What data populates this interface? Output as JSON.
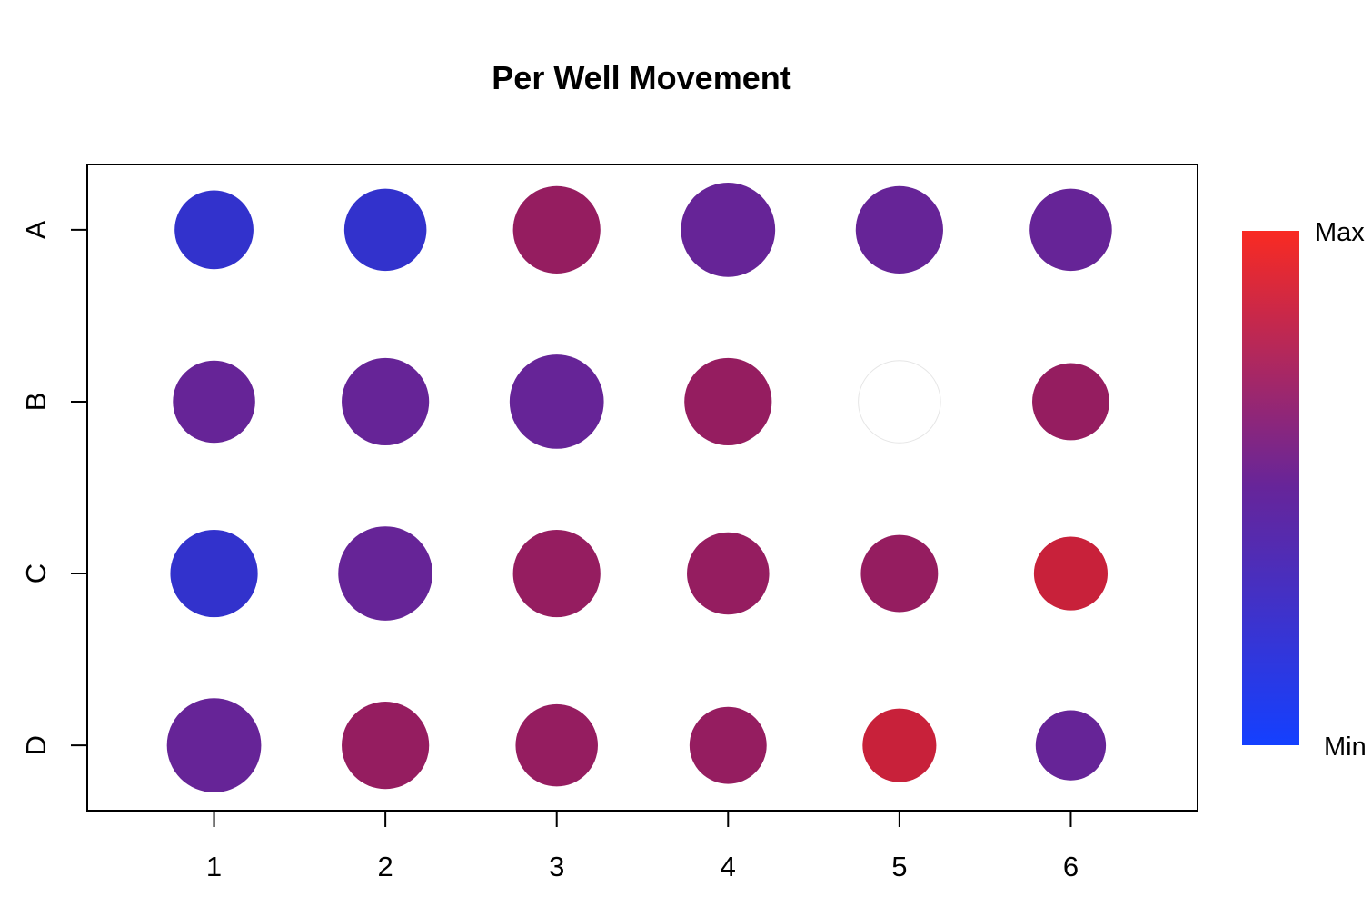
{
  "chart_data": {
    "type": "scatter",
    "title": "Per Well Movement",
    "xlabel": "",
    "ylabel": "",
    "columns": [
      "1",
      "2",
      "3",
      "4",
      "5",
      "6"
    ],
    "rows": [
      "A",
      "B",
      "C",
      "D"
    ],
    "xlim": [
      0.26,
      6.74
    ],
    "ylim": [
      0.62,
      4.38
    ],
    "grid": false,
    "legend": {
      "type": "color-gradient",
      "position": "right",
      "low_label": "Min",
      "high_label": "Max",
      "low_color": "#1440ff",
      "mid_color": "#66259a",
      "high_color": "#f92a22"
    },
    "wells": [
      {
        "row": "A",
        "col": 1,
        "radius_units": 0.23,
        "color": "#3232cc"
      },
      {
        "row": "A",
        "col": 2,
        "radius_units": 0.24,
        "color": "#3232cc"
      },
      {
        "row": "A",
        "col": 3,
        "radius_units": 0.255,
        "color": "#951d60"
      },
      {
        "row": "A",
        "col": 4,
        "radius_units": 0.275,
        "color": "#662497"
      },
      {
        "row": "A",
        "col": 5,
        "radius_units": 0.255,
        "color": "#662497"
      },
      {
        "row": "A",
        "col": 6,
        "radius_units": 0.24,
        "color": "#662497"
      },
      {
        "row": "B",
        "col": 1,
        "radius_units": 0.24,
        "color": "#662497"
      },
      {
        "row": "B",
        "col": 2,
        "radius_units": 0.255,
        "color": "#662497"
      },
      {
        "row": "B",
        "col": 3,
        "radius_units": 0.275,
        "color": "#662497"
      },
      {
        "row": "B",
        "col": 4,
        "radius_units": 0.255,
        "color": "#951d60"
      },
      {
        "row": "B",
        "col": 5,
        "radius_units": 0.24,
        "color": "#ffffff"
      },
      {
        "row": "B",
        "col": 6,
        "radius_units": 0.225,
        "color": "#951d60"
      },
      {
        "row": "C",
        "col": 1,
        "radius_units": 0.255,
        "color": "#3232cc"
      },
      {
        "row": "C",
        "col": 2,
        "radius_units": 0.275,
        "color": "#662497"
      },
      {
        "row": "C",
        "col": 3,
        "radius_units": 0.255,
        "color": "#951d60"
      },
      {
        "row": "C",
        "col": 4,
        "radius_units": 0.24,
        "color": "#951d60"
      },
      {
        "row": "C",
        "col": 5,
        "radius_units": 0.225,
        "color": "#951d60"
      },
      {
        "row": "C",
        "col": 6,
        "radius_units": 0.215,
        "color": "#c8213a"
      },
      {
        "row": "D",
        "col": 1,
        "radius_units": 0.275,
        "color": "#662497"
      },
      {
        "row": "D",
        "col": 2,
        "radius_units": 0.255,
        "color": "#951d60"
      },
      {
        "row": "D",
        "col": 3,
        "radius_units": 0.24,
        "color": "#951d60"
      },
      {
        "row": "D",
        "col": 4,
        "radius_units": 0.225,
        "color": "#951d60"
      },
      {
        "row": "D",
        "col": 5,
        "radius_units": 0.215,
        "color": "#c8213a"
      },
      {
        "row": "D",
        "col": 6,
        "radius_units": 0.205,
        "color": "#662497"
      }
    ]
  }
}
